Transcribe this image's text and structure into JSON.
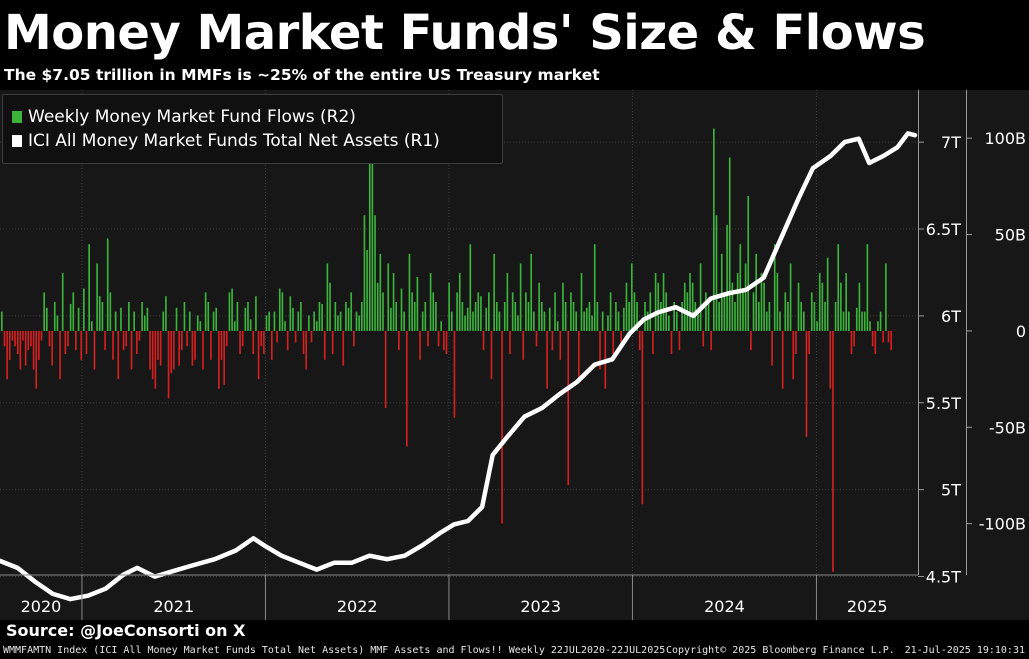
{
  "header": {
    "title": "Money Market Funds' Size & Flows",
    "subtitle": "The $7.05 trillion in MMFs is ~25% of the entire US Treasury market"
  },
  "legend": [
    {
      "label": "Weekly Money Market Fund Flows (R2)",
      "color": "#3cb43c"
    },
    {
      "label": "ICI All Money Market Funds Total Net Assets  (R1)",
      "color": "#ffffff"
    }
  ],
  "source": "Source: @JoeConsorti on X",
  "footer": {
    "left": "WMMFAMTN Index (ICI All Money Market Funds Total Net Assets) MMF Assets and Flows!!  Weekly 22JUL2020-22JUL2025",
    "middle": "Copyright© 2025 Bloomberg Finance L.P.",
    "right": "21-Jul-2025 19:10:31"
  },
  "colors": {
    "inflow": "#3cb43c",
    "outflow": "#d42020",
    "assets": "#ffffff",
    "plot_bg": "#171717"
  },
  "chart_data": {
    "type": "bar+line",
    "title": "Money Market Funds' Size & Flows",
    "x_range": [
      "2020-07-22",
      "2025-07-22"
    ],
    "x_tick_labels": [
      "2020",
      "2021",
      "2022",
      "2023",
      "2024",
      "2025"
    ],
    "axis_r1": {
      "name": "ICI All Money Market Funds Total Net Assets",
      "ticks": [
        "4.5T",
        "5T",
        "5.5T",
        "6T",
        "6.5T",
        "7T"
      ],
      "ylim": [
        4.25,
        7.3
      ],
      "unit": "trillion USD"
    },
    "axis_r2": {
      "name": "Weekly Money Market Fund Flows",
      "ticks": [
        "-100B",
        "-50B",
        "0",
        "50B",
        "100B"
      ],
      "ylim": [
        -150,
        125
      ],
      "unit": "billion USD"
    },
    "grid": true,
    "legend_position": "top-left",
    "series": [
      {
        "name": "ICI All Money Market Funds Total Net Assets  (R1)",
        "type": "line",
        "axis": "R1",
        "points": [
          [
            "2020-07-22",
            4.59
          ],
          [
            "2020-08-26",
            4.55
          ],
          [
            "2020-09-30",
            4.47
          ],
          [
            "2020-11-04",
            4.4
          ],
          [
            "2020-12-09",
            4.37
          ],
          [
            "2021-01-13",
            4.39
          ],
          [
            "2021-02-17",
            4.43
          ],
          [
            "2021-03-24",
            4.51
          ],
          [
            "2021-04-21",
            4.55
          ],
          [
            "2021-05-26",
            4.5
          ],
          [
            "2021-06-30",
            4.53
          ],
          [
            "2021-08-04",
            4.56
          ],
          [
            "2021-09-22",
            4.6
          ],
          [
            "2021-11-03",
            4.65
          ],
          [
            "2021-12-08",
            4.72
          ],
          [
            "2021-12-29",
            4.68
          ],
          [
            "2022-02-02",
            4.62
          ],
          [
            "2022-03-09",
            4.58
          ],
          [
            "2022-04-13",
            4.54
          ],
          [
            "2022-05-18",
            4.58
          ],
          [
            "2022-06-22",
            4.58
          ],
          [
            "2022-07-27",
            4.62
          ],
          [
            "2022-08-31",
            4.6
          ],
          [
            "2022-10-05",
            4.62
          ],
          [
            "2022-11-09",
            4.68
          ],
          [
            "2022-12-14",
            4.75
          ],
          [
            "2023-01-11",
            4.8
          ],
          [
            "2023-02-08",
            4.82
          ],
          [
            "2023-03-08",
            4.9
          ],
          [
            "2023-03-29",
            5.2
          ],
          [
            "2023-04-26",
            5.3
          ],
          [
            "2023-05-31",
            5.42
          ],
          [
            "2023-07-05",
            5.47
          ],
          [
            "2023-08-09",
            5.55
          ],
          [
            "2023-09-13",
            5.62
          ],
          [
            "2023-10-18",
            5.72
          ],
          [
            "2023-11-22",
            5.75
          ],
          [
            "2023-12-27",
            5.9
          ],
          [
            "2024-01-24",
            5.98
          ],
          [
            "2024-02-21",
            6.02
          ],
          [
            "2024-03-27",
            6.05
          ],
          [
            "2024-05-01",
            6.0
          ],
          [
            "2024-06-05",
            6.1
          ],
          [
            "2024-07-10",
            6.13
          ],
          [
            "2024-08-14",
            6.15
          ],
          [
            "2024-09-18",
            6.22
          ],
          [
            "2024-10-23",
            6.45
          ],
          [
            "2024-11-27",
            6.68
          ],
          [
            "2024-12-25",
            6.85
          ],
          [
            "2025-01-29",
            6.92
          ],
          [
            "2025-02-26",
            7.0
          ],
          [
            "2025-03-26",
            7.02
          ],
          [
            "2025-04-16",
            6.88
          ],
          [
            "2025-05-14",
            6.92
          ],
          [
            "2025-06-11",
            6.97
          ],
          [
            "2025-07-02",
            7.05
          ],
          [
            "2025-07-16",
            7.04
          ]
        ]
      },
      {
        "name": "Weekly Money Market Fund Flows (R2)",
        "type": "bar",
        "axis": "R2",
        "values": [
          10,
          -8,
          -25,
          -15,
          -5,
          -8,
          -12,
          -20,
          -5,
          -18,
          -10,
          -8,
          -20,
          -30,
          -15,
          -5,
          20,
          12,
          -8,
          -18,
          15,
          8,
          -25,
          30,
          -12,
          -8,
          14,
          20,
          -10,
          12,
          -15,
          22,
          -12,
          45,
          5,
          -20,
          35,
          18,
          15,
          -10,
          48,
          20,
          -15,
          10,
          -25,
          12,
          -10,
          -8,
          15,
          -20,
          10,
          -12,
          -5,
          15,
          8,
          12,
          -20,
          -25,
          -30,
          -15,
          -18,
          10,
          18,
          -35,
          -22,
          -20,
          12,
          -18,
          -10,
          15,
          -8,
          10,
          -18,
          -15,
          8,
          5,
          -20,
          20,
          15,
          -15,
          10,
          12,
          -30,
          -15,
          -28,
          -8,
          20,
          22,
          5,
          15,
          -12,
          -8,
          12,
          15,
          6,
          -12,
          18,
          -25,
          -8,
          -12,
          8,
          10,
          -15,
          10,
          -6,
          22,
          20,
          5,
          -10,
          18,
          12,
          -6,
          10,
          15,
          -12,
          -20,
          8,
          -6,
          10,
          5,
          15,
          14,
          -15,
          35,
          25,
          -12,
          15,
          8,
          10,
          -18,
          15,
          12,
          20,
          -8,
          10,
          8,
          15,
          60,
          42,
          120,
          110,
          60,
          25,
          40,
          20,
          -40,
          35,
          12,
          30,
          15,
          -10,
          22,
          10,
          -60,
          40,
          20,
          15,
          28,
          -15,
          10,
          15,
          -8,
          30,
          20,
          15,
          -8,
          5,
          -10,
          -12,
          25,
          10,
          -45,
          20,
          30,
          15,
          8,
          12,
          45,
          10,
          15,
          20,
          18,
          -10,
          12,
          20,
          -25,
          40,
          15,
          10,
          -100,
          15,
          30,
          -12,
          20,
          15,
          8,
          35,
          -15,
          20,
          15,
          40,
          10,
          -8,
          25,
          15,
          10,
          -30,
          12,
          -10,
          20,
          5,
          -15,
          25,
          15,
          -80,
          20,
          15,
          10,
          -25,
          30,
          10,
          12,
          15,
          8,
          45,
          15,
          -20,
          10,
          -30,
          8,
          20,
          -12,
          15,
          10,
          -8,
          12,
          25,
          15,
          35,
          20,
          15,
          -10,
          -90,
          15,
          10,
          20,
          -12,
          30,
          25,
          15,
          30,
          20,
          8,
          -12,
          15,
          10,
          -10,
          15,
          25,
          20,
          30,
          25,
          15,
          10,
          35,
          -8,
          20,
          15,
          -10,
          105,
          60,
          15,
          40,
          20,
          55,
          90,
          25,
          15,
          30,
          45,
          20,
          35,
          70,
          -10,
          20,
          40,
          15,
          30,
          25,
          10,
          15,
          -18,
          45,
          30,
          10,
          -30,
          20,
          15,
          35,
          -25,
          -12,
          25,
          15,
          10,
          -55,
          -12,
          20,
          15,
          5,
          30,
          25,
          15,
          38,
          -30,
          -125,
          15,
          45,
          25,
          10,
          30,
          10,
          -12,
          -8,
          12,
          25,
          10,
          10,
          45,
          5,
          -8,
          -12,
          5,
          10,
          -6,
          35,
          -6,
          -10
        ]
      }
    ]
  }
}
